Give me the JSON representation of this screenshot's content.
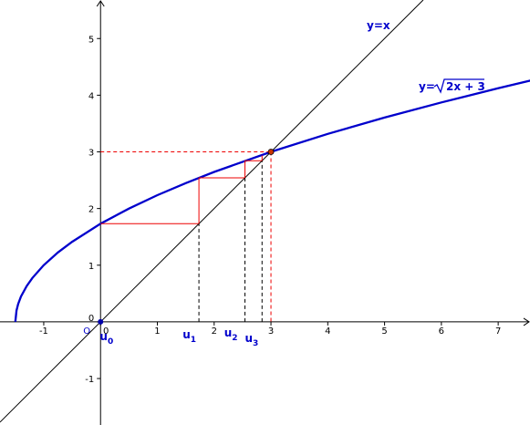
{
  "chart_data": {
    "type": "function",
    "xlim": [
      -1.77,
      7.56
    ],
    "ylim": [
      -1.82,
      5.68
    ],
    "xticks": [
      -1,
      0,
      1,
      2,
      3,
      4,
      5,
      6,
      7
    ],
    "yticks": [
      -1,
      0,
      1,
      2,
      3,
      4,
      5
    ],
    "origin_label": "O",
    "series": [
      {
        "name": "curve",
        "color": "#0000cc",
        "x": [
          -1.5,
          -1.48,
          -1.45,
          -1.4,
          -1.3,
          -1.2,
          -1,
          -0.75,
          -0.5,
          0,
          0.5,
          1,
          1.5,
          2,
          3,
          4,
          5,
          6,
          7,
          7.6
        ],
        "values": [
          0,
          0.2,
          0.316,
          0.447,
          0.632,
          0.775,
          1,
          1.225,
          1.414,
          1.732,
          2,
          2.236,
          2.449,
          2.646,
          3,
          3.317,
          3.606,
          3.873,
          4.123,
          4.266
        ]
      },
      {
        "name": "diagonal",
        "color": "#000000",
        "x": [
          -1.77,
          5.68
        ],
        "values": [
          -1.77,
          5.68
        ]
      }
    ],
    "curve_label": {
      "prefix": "y=",
      "radicand": "2x + 3"
    },
    "line_label": "y=x",
    "sequence": {
      "color": "#ee0000",
      "values": [
        0,
        1.732,
        2.542,
        2.843
      ],
      "labels": [
        {
          "name": "u",
          "index": "0"
        },
        {
          "name": "u",
          "index": "1"
        },
        {
          "name": "u",
          "index": "2"
        },
        {
          "name": "u",
          "index": "3"
        }
      ]
    },
    "fixed_point": {
      "x": 3,
      "y": 3
    }
  }
}
